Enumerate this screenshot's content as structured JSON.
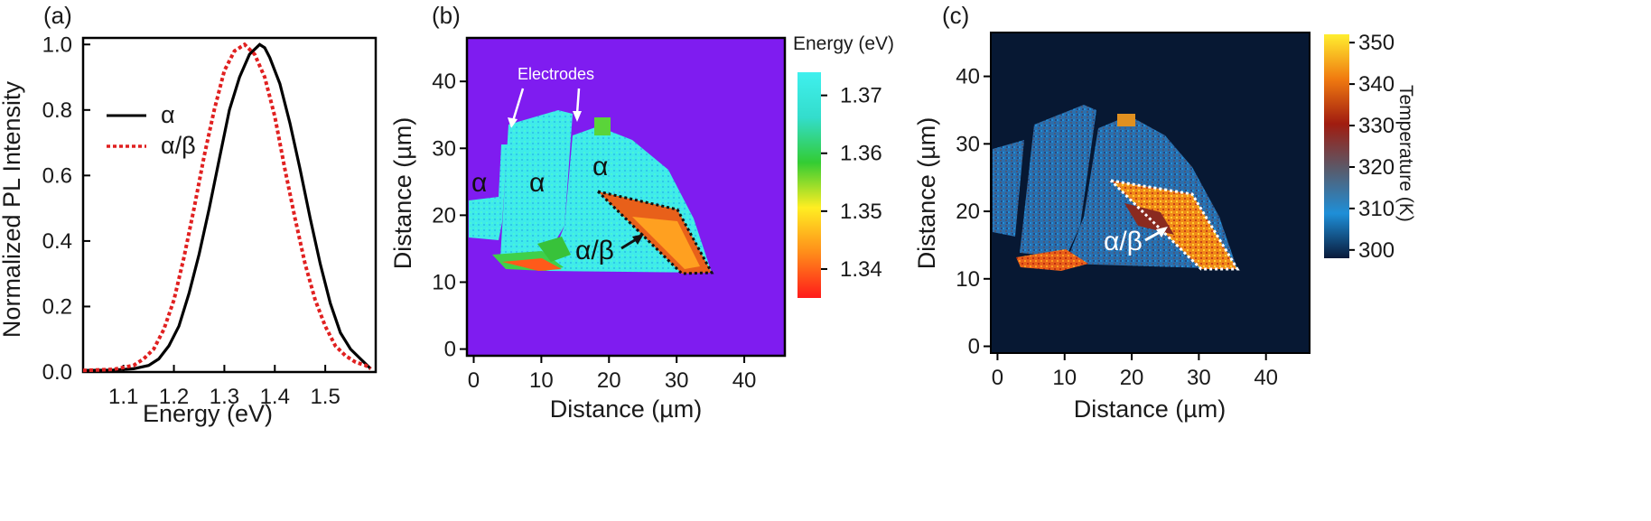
{
  "chart_data": [
    {
      "panel": "(a)",
      "type": "line",
      "xlabel": "Energy (eV)",
      "ylabel": "Normalized PL Intensity",
      "xlim": [
        1.02,
        1.6
      ],
      "ylim": [
        0.0,
        1.02
      ],
      "xticks": [
        1.1,
        1.2,
        1.3,
        1.4,
        1.5
      ],
      "yticks": [
        0.0,
        0.2,
        0.4,
        0.6,
        0.8,
        1.0
      ],
      "xtick_labels": [
        "1.1",
        "1.2",
        "1.3",
        "1.4",
        "1.5"
      ],
      "ytick_labels": [
        "0.0",
        "0.2",
        "0.4",
        "0.6",
        "0.8",
        "1.0"
      ],
      "legend_position": "middle-left",
      "series": [
        {
          "name": "α",
          "color": "#000000",
          "style": "solid",
          "x": [
            1.02,
            1.08,
            1.12,
            1.15,
            1.17,
            1.19,
            1.21,
            1.23,
            1.25,
            1.27,
            1.29,
            1.31,
            1.33,
            1.35,
            1.37,
            1.38,
            1.39,
            1.41,
            1.43,
            1.45,
            1.47,
            1.49,
            1.51,
            1.53,
            1.55,
            1.57,
            1.59
          ],
          "y": [
            0.005,
            0.006,
            0.01,
            0.02,
            0.04,
            0.08,
            0.14,
            0.24,
            0.36,
            0.5,
            0.65,
            0.8,
            0.9,
            0.97,
            1.0,
            0.99,
            0.96,
            0.88,
            0.76,
            0.62,
            0.47,
            0.33,
            0.21,
            0.12,
            0.07,
            0.04,
            0.01
          ]
        },
        {
          "name": "α/β",
          "color": "#e02020",
          "style": "dashed",
          "x": [
            1.02,
            1.08,
            1.12,
            1.14,
            1.16,
            1.18,
            1.2,
            1.22,
            1.24,
            1.26,
            1.28,
            1.3,
            1.32,
            1.34,
            1.36,
            1.38,
            1.4,
            1.42,
            1.44,
            1.46,
            1.48,
            1.5,
            1.52,
            1.54,
            1.56,
            1.58,
            1.59
          ],
          "y": [
            0.005,
            0.008,
            0.02,
            0.04,
            0.07,
            0.13,
            0.22,
            0.35,
            0.5,
            0.66,
            0.8,
            0.92,
            0.98,
            1.0,
            0.97,
            0.9,
            0.78,
            0.62,
            0.47,
            0.33,
            0.22,
            0.14,
            0.08,
            0.05,
            0.03,
            0.02,
            0.01
          ]
        }
      ]
    },
    {
      "panel": "(b)",
      "type": "heatmap",
      "xlabel": "Distance (µm)",
      "ylabel": "Distance (µm)",
      "xlim": [
        -1,
        46
      ],
      "ylim": [
        -1,
        46.5
      ],
      "xticks": [
        0,
        10,
        20,
        30,
        40
      ],
      "yticks": [
        0,
        10,
        20,
        30,
        40
      ],
      "xtick_labels": [
        "0",
        "10",
        "20",
        "30",
        "40"
      ],
      "ytick_labels": [
        "0",
        "10",
        "20",
        "30",
        "40"
      ],
      "background_color": "#7f1cf0",
      "colorbar": {
        "title": "Energy (eV)",
        "range": [
          1.335,
          1.374
        ],
        "ticks": [
          1.34,
          1.35,
          1.36,
          1.37
        ],
        "tick_labels": [
          "1.34",
          "1.35",
          "1.36",
          "1.37"
        ],
        "colors": [
          "#ff1a1a",
          "#ff8c1a",
          "#ffee22",
          "#33cc33",
          "#33ddcc",
          "#3ff0ee"
        ]
      },
      "annotations": [
        "Electrodes",
        "α",
        "α",
        "α",
        "α/β"
      ]
    },
    {
      "panel": "(c)",
      "type": "heatmap",
      "xlabel": "Distance (µm)",
      "ylabel": "Distance (µm)",
      "xlim": [
        -1,
        46.5
      ],
      "ylim": [
        -1,
        46.5
      ],
      "xticks": [
        0,
        10,
        20,
        30,
        40
      ],
      "yticks": [
        0,
        10,
        20,
        30,
        40
      ],
      "xtick_labels": [
        "0",
        "10",
        "20",
        "30",
        "40"
      ],
      "ytick_labels": [
        "0",
        "10",
        "20",
        "30",
        "40"
      ],
      "background_color": "#071833",
      "colorbar": {
        "title": "Temperature (K)",
        "range": [
          298,
          352
        ],
        "ticks": [
          300,
          310,
          320,
          330,
          340,
          350
        ],
        "tick_labels": [
          "300",
          "310",
          "320",
          "330",
          "340",
          "350"
        ],
        "colors": [
          "#0a1a3a",
          "#1e8fd8",
          "#5a5a6a",
          "#a01c10",
          "#f07a10",
          "#ffee30"
        ]
      },
      "annotations": [
        "α/β"
      ]
    }
  ]
}
